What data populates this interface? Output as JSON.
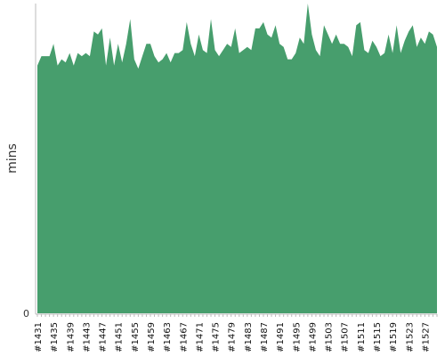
{
  "chart_data": {
    "type": "area",
    "y_label": "mins",
    "color": "#479e6d",
    "ylim": [
      0,
      100
    ],
    "yticks": [
      0
    ],
    "categories": [
      "#1431",
      null,
      null,
      null,
      "#1435",
      null,
      null,
      null,
      "#1439",
      null,
      null,
      null,
      "#1443",
      null,
      null,
      null,
      "#1447",
      null,
      null,
      null,
      "#1451",
      null,
      null,
      null,
      "#1455",
      null,
      null,
      null,
      "#1459",
      null,
      null,
      null,
      "#1463",
      null,
      null,
      null,
      "#1467",
      null,
      null,
      null,
      "#1471",
      null,
      null,
      null,
      "#1475",
      null,
      null,
      null,
      "#1479",
      null,
      null,
      null,
      "#1483",
      null,
      null,
      null,
      "#1487",
      null,
      null,
      null,
      "#1491",
      null,
      null,
      null,
      "#1495",
      null,
      null,
      null,
      "#1499",
      null,
      null,
      null,
      "#1503",
      null,
      null,
      null,
      "#1507",
      null,
      null,
      null,
      "#1511",
      null,
      null,
      null,
      "#1515",
      null,
      null,
      null,
      "#1519",
      null,
      null,
      null,
      "#1523",
      null,
      null,
      null,
      "#1527",
      null,
      null,
      null
    ],
    "values": [
      80,
      83,
      83,
      83,
      87,
      80,
      82,
      81,
      84,
      80,
      84,
      83,
      84,
      83,
      91,
      90,
      92,
      80,
      89,
      80,
      87,
      81,
      87,
      95,
      82,
      79,
      83,
      87,
      87,
      83,
      81,
      82,
      84,
      81,
      84,
      84,
      85,
      94,
      87,
      83,
      90,
      85,
      84,
      95,
      85,
      83,
      85,
      87,
      86,
      92,
      84,
      85,
      86,
      85,
      92,
      92,
      94,
      90,
      89,
      93,
      87,
      86,
      82,
      82,
      84,
      89,
      87,
      100,
      90,
      85,
      83,
      93,
      90,
      87,
      90,
      87,
      87,
      86,
      83,
      93,
      94,
      85,
      84,
      88,
      86,
      83,
      84,
      90,
      84,
      93,
      84,
      88,
      91,
      93,
      86,
      89,
      87,
      91,
      90,
      86
    ]
  }
}
